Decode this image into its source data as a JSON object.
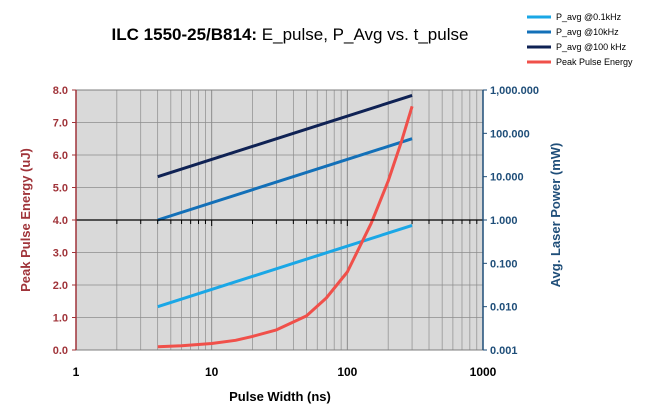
{
  "chart_data": {
    "type": "line",
    "title_bold": "ILC 1550-25/B814:",
    "title_rest": " E_pulse, P_Avg vs. t_pulse",
    "xlabel": "Pulse Width (ns)",
    "ylabel_left": "Peak Pulse Energy (uJ)",
    "ylabel_right": "Avg. Laser Power (mW)",
    "x_scale": "log",
    "xlim": [
      1,
      1000
    ],
    "x_tick_labels": [
      "1",
      "10",
      "100",
      "1000"
    ],
    "ylim_left": [
      0,
      8
    ],
    "y_left_tick_labels": [
      "0.0",
      "1.0",
      "2.0",
      "3.0",
      "4.0",
      "5.0",
      "6.0",
      "7.0",
      "8.0"
    ],
    "y_right_scale": "log",
    "ylim_right": [
      0.001,
      1000
    ],
    "y_right_tick_labels": [
      "0.001",
      "0.010",
      "0.100",
      "1.000",
      "10.000",
      "100.000",
      "1,000.000"
    ],
    "grid": true,
    "legend_position": "top-right",
    "series": [
      {
        "name": "P_avg @0.1kHz",
        "axis": "right",
        "color": "#1aa7e6",
        "x": [
          4,
          300
        ],
        "y": [
          0.01,
          0.75
        ]
      },
      {
        "name": "P_avg @10kHz",
        "axis": "right",
        "color": "#1370b8",
        "x": [
          4,
          300
        ],
        "y": [
          1.0,
          75
        ]
      },
      {
        "name": "P_avg @100 kHz",
        "axis": "right",
        "color": "#0f2254",
        "x": [
          4,
          300
        ],
        "y": [
          10,
          750
        ]
      },
      {
        "name": "Peak Pulse Energy",
        "axis": "left",
        "color": "#f0504a",
        "x": [
          4,
          6,
          10,
          15,
          20,
          30,
          50,
          70,
          100,
          150,
          200,
          250,
          300
        ],
        "y": [
          0.1,
          0.13,
          0.2,
          0.3,
          0.42,
          0.62,
          1.05,
          1.6,
          2.4,
          3.9,
          5.2,
          6.4,
          7.5
        ]
      }
    ]
  }
}
